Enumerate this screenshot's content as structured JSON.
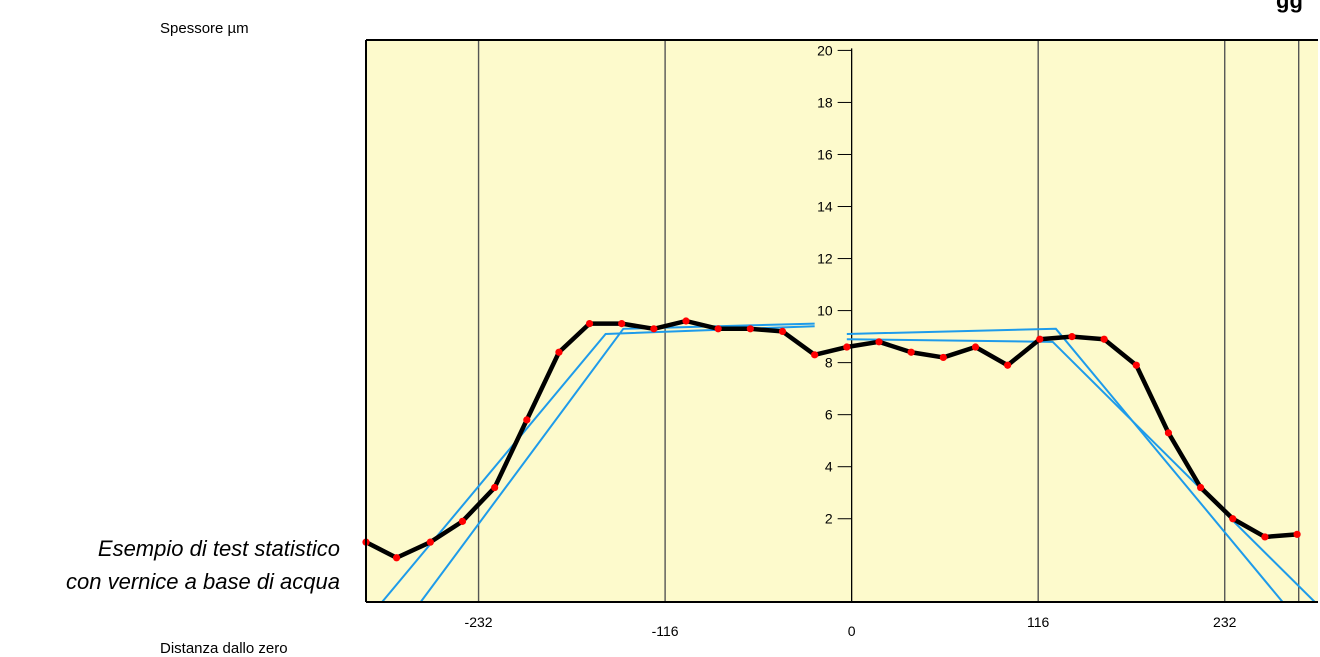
{
  "labels": {
    "title_fragment": "gg",
    "y_axis": "Spessore µm",
    "x_axis": "Distanza dallo zero",
    "note_line1": "Esempio di test statistico",
    "note_line2": "con vernice a base di acqua"
  },
  "colors": {
    "background": "#fdfacc",
    "profile_line": "#000000",
    "profile_points": "#ff0000",
    "fit_lines": "#1e9bea",
    "grid_lines": "#555555"
  },
  "chart_data": {
    "type": "line",
    "xlabel": "Distanza dallo zero",
    "ylabel": "Spessore µm",
    "xlim": [
      -302,
      290
    ],
    "ylim": [
      -1.2,
      20.4
    ],
    "grid": "vertical",
    "x_ticks": [
      {
        "value": -232,
        "label": "-232"
      },
      {
        "value": -116,
        "label": "-116"
      },
      {
        "value": 0,
        "label": "0"
      },
      {
        "value": 116,
        "label": "116"
      },
      {
        "value": 232,
        "label": "232"
      }
    ],
    "x_gridlines": [
      -232,
      -116,
      116,
      232,
      278
    ],
    "y_ticks": [
      2,
      4,
      6,
      8,
      10,
      12,
      14,
      16,
      18,
      20
    ],
    "series": [
      {
        "style": "black line with red points",
        "x": [
          -302,
          -283,
          -262,
          -242,
          -222,
          -202,
          -182,
          -163,
          -143,
          -123,
          -103,
          -83,
          -63,
          -43,
          -23,
          -3,
          17,
          37,
          57,
          77,
          97,
          117,
          137,
          157,
          177,
          197,
          217,
          237,
          257,
          277
        ],
        "y": [
          1.1,
          0.5,
          1.1,
          1.9,
          3.2,
          5.8,
          8.4,
          9.5,
          9.5,
          9.3,
          9.6,
          9.3,
          9.3,
          9.2,
          8.3,
          8.6,
          8.8,
          8.4,
          8.2,
          8.6,
          7.9,
          8.9,
          9.0,
          8.9,
          7.9,
          5.3,
          3.2,
          2.0,
          1.3,
          1.4
        ]
      },
      {
        "style": "blue fit line",
        "x": [
          -292,
          -153,
          -23
        ],
        "y": [
          -1.2,
          9.1,
          9.4
        ]
      },
      {
        "style": "blue fit line",
        "x": [
          -268,
          -142,
          -23
        ],
        "y": [
          -1.2,
          9.3,
          9.5
        ]
      },
      {
        "style": "blue fit line",
        "x": [
          -3,
          127,
          268
        ],
        "y": [
          9.1,
          9.3,
          -1.2
        ]
      },
      {
        "style": "blue fit line",
        "x": [
          -3,
          125,
          288
        ],
        "y": [
          8.9,
          8.8,
          -1.2
        ]
      }
    ]
  }
}
